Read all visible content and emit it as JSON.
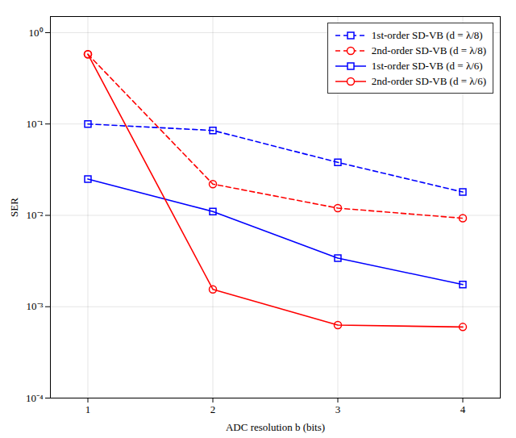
{
  "chart_data": {
    "type": "line",
    "x": [
      1,
      2,
      3,
      4
    ],
    "xlabel": "ADC resolution b (bits)",
    "ylabel": "SER",
    "xlim": [
      0.7,
      4.3
    ],
    "xticks": [
      1,
      2,
      3,
      4
    ],
    "ylim": [
      0.0001,
      1.5
    ],
    "yticks": [
      {
        "value": 0.0001,
        "label": "10⁻⁴"
      },
      {
        "value": 0.001,
        "label": "10⁻³"
      },
      {
        "value": 0.01,
        "label": "10⁻²"
      },
      {
        "value": 0.1,
        "label": "10⁻¹"
      },
      {
        "value": 1,
        "label": "10⁰"
      }
    ],
    "log": "y",
    "grid": true,
    "legend": "upper right",
    "series": [
      {
        "name": "1st-order SD-VB (d = λ/8)",
        "color": "#0000FF",
        "line_style": "dashed",
        "marker": "square",
        "values": [
          0.1,
          0.085,
          0.038,
          0.018
        ]
      },
      {
        "name": "2nd-order SD-VB (d = λ/8)",
        "color": "#FF0000",
        "line_style": "dashed",
        "marker": "circle",
        "values": [
          0.58,
          0.022,
          0.012,
          0.0093
        ]
      },
      {
        "name": "1st-order SD-VB (d = λ/6)",
        "color": "#0000FF",
        "line_style": "solid",
        "marker": "square",
        "values": [
          0.025,
          0.011,
          0.0034,
          0.00175
        ]
      },
      {
        "name": "2nd-order SD-VB (d = λ/6)",
        "color": "#FF0000",
        "line_style": "solid",
        "marker": "circle",
        "values": [
          0.58,
          0.00155,
          0.00063,
          0.0006
        ]
      }
    ]
  }
}
